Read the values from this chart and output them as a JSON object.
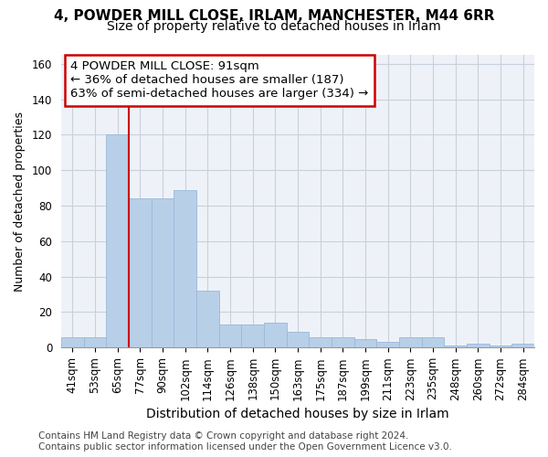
{
  "title": "4, POWDER MILL CLOSE, IRLAM, MANCHESTER, M44 6RR",
  "subtitle": "Size of property relative to detached houses in Irlam",
  "xlabel": "Distribution of detached houses by size in Irlam",
  "ylabel": "Number of detached properties",
  "footer_line1": "Contains HM Land Registry data © Crown copyright and database right 2024.",
  "footer_line2": "Contains public sector information licensed under the Open Government Licence v3.0.",
  "categories": [
    "41sqm",
    "53sqm",
    "65sqm",
    "77sqm",
    "90sqm",
    "102sqm",
    "114sqm",
    "126sqm",
    "138sqm",
    "150sqm",
    "163sqm",
    "175sqm",
    "187sqm",
    "199sqm",
    "211sqm",
    "223sqm",
    "235sqm",
    "248sqm",
    "260sqm",
    "272sqm",
    "284sqm"
  ],
  "values": [
    6,
    6,
    120,
    84,
    84,
    89,
    32,
    13,
    13,
    14,
    9,
    6,
    6,
    5,
    3,
    6,
    6,
    1,
    2,
    1,
    2
  ],
  "bar_color": "#b8cfe8",
  "bar_edge_color": "#9ab8d8",
  "property_label": "4 POWDER MILL CLOSE: 91sqm",
  "pct_smaller": 36,
  "n_smaller": 187,
  "pct_larger": 63,
  "n_larger": 334,
  "vline_x_index": 2.5,
  "vline_color": "#cc0000",
  "box_edge_color": "#cc0000",
  "ylim": [
    0,
    165
  ],
  "yticks": [
    0,
    20,
    40,
    60,
    80,
    100,
    120,
    140,
    160
  ],
  "grid_color": "#c8d0dc",
  "bg_color": "#eef2f8",
  "title_fontsize": 11,
  "subtitle_fontsize": 10,
  "tick_fontsize": 8.5,
  "xlabel_fontsize": 10,
  "ylabel_fontsize": 9,
  "annotation_fontsize": 9.5,
  "footer_fontsize": 7.5
}
